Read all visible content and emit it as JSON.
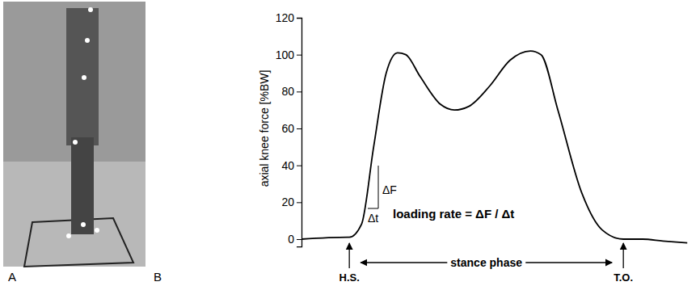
{
  "photo_panel": {
    "label": "A"
  },
  "chart_data": {
    "type": "line",
    "panel_label": "B",
    "ylabel": "axial knee force [%BW]",
    "x": [
      0,
      11.8,
      12.2,
      15.3,
      18.4,
      21.6,
      24.5,
      26.6,
      30.3,
      35.5,
      39.0,
      42.7,
      48.0,
      53.2,
      58.4,
      61.1,
      65.4,
      71.5,
      76.7,
      82.1,
      87.0,
      92.2,
      98.4
    ],
    "values": [
      0,
      1,
      1,
      8,
      50,
      90,
      101,
      100,
      88,
      73,
      70,
      72,
      83,
      97,
      102,
      100,
      70,
      25,
      5,
      0,
      0,
      -1,
      -2
    ],
    "xlim": [
      0,
      100
    ],
    "ylim": [
      -4,
      120
    ],
    "yticks": [
      0,
      20,
      40,
      60,
      80,
      100,
      120
    ],
    "tick_labels": "y",
    "color": "#000000",
    "events": [
      {
        "label": "H.S.",
        "x": 12.2
      },
      {
        "label": "T.O.",
        "x": 82.1
      }
    ],
    "annotations": {
      "stance_phase": "stance phase",
      "loading_rate": "loading rate = ΔF / Δt",
      "delta_f": "ΔF",
      "delta_t": "Δt"
    }
  }
}
